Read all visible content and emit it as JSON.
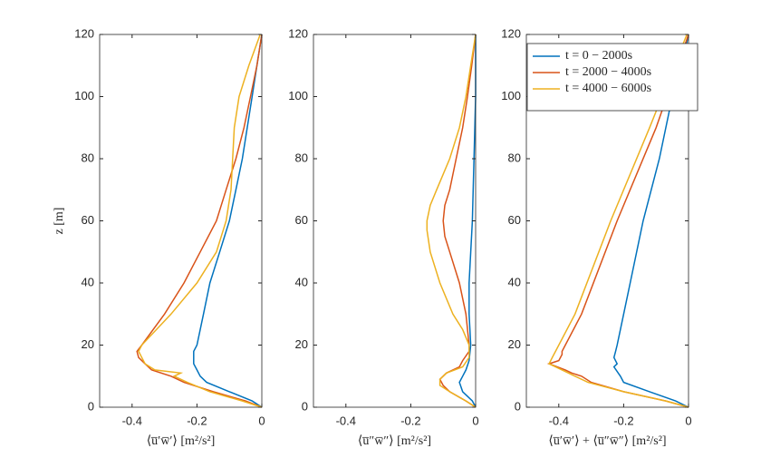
{
  "chart_data": [
    {
      "type": "line",
      "xlabel": "⟨u̅′w̅′⟩ [m²/s²]",
      "ylabel": "z [m]",
      "xlim": [
        -0.5,
        0
      ],
      "ylim": [
        0,
        120
      ],
      "xticks": [
        -0.4,
        -0.2,
        0
      ],
      "yticks": [
        0,
        20,
        40,
        60,
        80,
        100,
        120
      ],
      "series": [
        {
          "color": "#0072BD",
          "x": [
            0,
            -0.03,
            -0.1,
            -0.17,
            -0.19,
            -0.2,
            -0.21,
            -0.21,
            -0.21,
            -0.2,
            -0.18,
            -0.16,
            -0.13,
            -0.1,
            -0.08,
            -0.06,
            -0.045,
            -0.03,
            -0.015,
            0
          ],
          "y": [
            0,
            2,
            5,
            8,
            10,
            12,
            14,
            16,
            18,
            20,
            30,
            40,
            50,
            60,
            70,
            80,
            90,
            100,
            110,
            120
          ]
        },
        {
          "color": "#D95319",
          "x": [
            0,
            -0.05,
            -0.15,
            -0.24,
            -0.28,
            -0.34,
            -0.36,
            -0.38,
            -0.385,
            -0.37,
            -0.3,
            -0.24,
            -0.19,
            -0.14,
            -0.11,
            -0.08,
            -0.055,
            -0.035,
            -0.015,
            0
          ],
          "y": [
            0,
            2,
            5,
            8,
            10,
            12,
            14,
            16,
            18,
            20,
            30,
            40,
            50,
            60,
            70,
            80,
            90,
            100,
            110,
            120
          ]
        },
        {
          "color": "#EDB120",
          "x": [
            0,
            -0.06,
            -0.16,
            -0.23,
            -0.27,
            -0.25,
            -0.33,
            -0.36,
            -0.37,
            -0.38,
            -0.37,
            -0.28,
            -0.2,
            -0.14,
            -0.11,
            -0.095,
            -0.09,
            -0.085,
            -0.07,
            -0.04,
            -0.005
          ],
          "y": [
            0,
            2,
            5,
            8,
            10,
            11,
            12,
            14,
            16,
            18,
            20,
            30,
            40,
            50,
            60,
            70,
            80,
            90,
            100,
            110,
            120
          ]
        }
      ]
    },
    {
      "type": "line",
      "xlabel": "⟨u̅″w̅″⟩ [m²/s²]",
      "xlim": [
        -0.5,
        0
      ],
      "ylim": [
        0,
        120
      ],
      "xticks": [
        -0.4,
        -0.2,
        0
      ],
      "yticks": [
        0,
        20,
        40,
        60,
        80,
        100,
        120
      ],
      "series": [
        {
          "color": "#0072BD",
          "x": [
            0,
            -0.01,
            -0.04,
            -0.05,
            -0.04,
            -0.03,
            -0.02,
            -0.015,
            -0.02,
            -0.02,
            -0.015,
            -0.01,
            -0.005,
            0,
            0
          ],
          "y": [
            0,
            2,
            5,
            8,
            10,
            12,
            15,
            20,
            30,
            40,
            50,
            60,
            80,
            100,
            120
          ]
        },
        {
          "color": "#D95319",
          "x": [
            0,
            -0.03,
            -0.08,
            -0.1,
            -0.11,
            -0.09,
            -0.05,
            -0.04,
            -0.02,
            -0.02,
            -0.03,
            -0.05,
            -0.08,
            -0.095,
            -0.1,
            -0.095,
            -0.08,
            -0.06,
            -0.04,
            -0.025,
            -0.012,
            0
          ],
          "y": [
            0,
            2,
            5,
            7,
            9,
            11,
            13,
            15,
            18,
            20,
            30,
            40,
            50,
            55,
            60,
            65,
            70,
            80,
            90,
            100,
            110,
            120
          ]
        },
        {
          "color": "#EDB120",
          "x": [
            0,
            -0.03,
            -0.08,
            -0.11,
            -0.11,
            -0.09,
            -0.04,
            -0.02,
            -0.02,
            -0.04,
            -0.07,
            -0.11,
            -0.14,
            -0.15,
            -0.15,
            -0.14,
            -0.12,
            -0.08,
            -0.05,
            -0.03,
            -0.015,
            0
          ],
          "y": [
            0,
            2,
            5,
            7,
            9,
            11,
            13,
            16,
            20,
            25,
            30,
            40,
            50,
            57,
            60,
            65,
            70,
            80,
            90,
            100,
            110,
            120
          ]
        }
      ]
    },
    {
      "type": "line",
      "xlabel": "⟨u̅′w̅′⟩ + ⟨u̅″w̅″⟩ [m²/s²]",
      "legend": "upper right",
      "xlim": [
        -0.5,
        0
      ],
      "ylim": [
        0,
        120
      ],
      "xticks": [
        -0.4,
        -0.2,
        0
      ],
      "yticks": [
        0,
        20,
        40,
        60,
        80,
        100,
        120
      ],
      "series": [
        {
          "name": "t = 0 − 2000s",
          "color": "#0072BD",
          "x": [
            0,
            -0.04,
            -0.12,
            -0.2,
            -0.21,
            -0.23,
            -0.22,
            -0.23,
            -0.225,
            -0.22,
            -0.2,
            -0.18,
            -0.14,
            -0.09,
            -0.05,
            -0.02,
            0
          ],
          "y": [
            0,
            2,
            5,
            8,
            10,
            13,
            14,
            16,
            18,
            20,
            30,
            40,
            60,
            80,
            100,
            110,
            120
          ]
        },
        {
          "name": "t = 2000 − 4000s",
          "color": "#D95319",
          "x": [
            0,
            -0.07,
            -0.2,
            -0.3,
            -0.33,
            -0.36,
            -0.38,
            -0.43,
            -0.4,
            -0.39,
            -0.39,
            -0.33,
            -0.22,
            -0.1,
            0
          ],
          "y": [
            0,
            2,
            5,
            8,
            10,
            11,
            12,
            14,
            15,
            17,
            18,
            30,
            60,
            90,
            120
          ]
        },
        {
          "name": "t = 4000 − 6000s",
          "color": "#EDB120",
          "x": [
            0,
            -0.07,
            -0.2,
            -0.31,
            -0.35,
            -0.39,
            -0.43,
            -0.42,
            -0.41,
            -0.35,
            -0.24,
            -0.12,
            -0.005
          ],
          "y": [
            0,
            2,
            5,
            8,
            10,
            12,
            14,
            16,
            18,
            30,
            60,
            90,
            120
          ]
        }
      ]
    }
  ]
}
